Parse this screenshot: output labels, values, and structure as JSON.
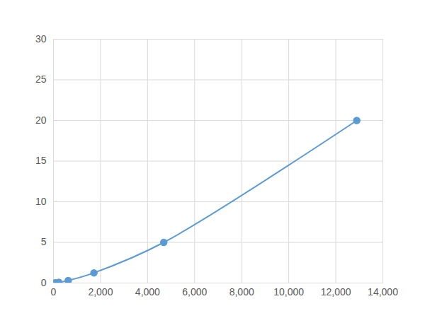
{
  "chart_data": {
    "type": "line",
    "x": [
      83,
      227,
      625,
      1719,
      4688,
      12891
    ],
    "values": [
      0.02,
      0.08,
      0.31,
      1.25,
      5,
      20
    ],
    "color": "#5b9bd5",
    "marker": "circle",
    "line_style": "solid",
    "xlim": [
      0,
      14000
    ],
    "xticks": [
      0,
      2000,
      4000,
      6000,
      8000,
      10000,
      12000,
      14000
    ],
    "ylim": [
      0,
      30
    ],
    "yticks": [
      0,
      5,
      10,
      15,
      20,
      25,
      30
    ],
    "grid": true
  }
}
